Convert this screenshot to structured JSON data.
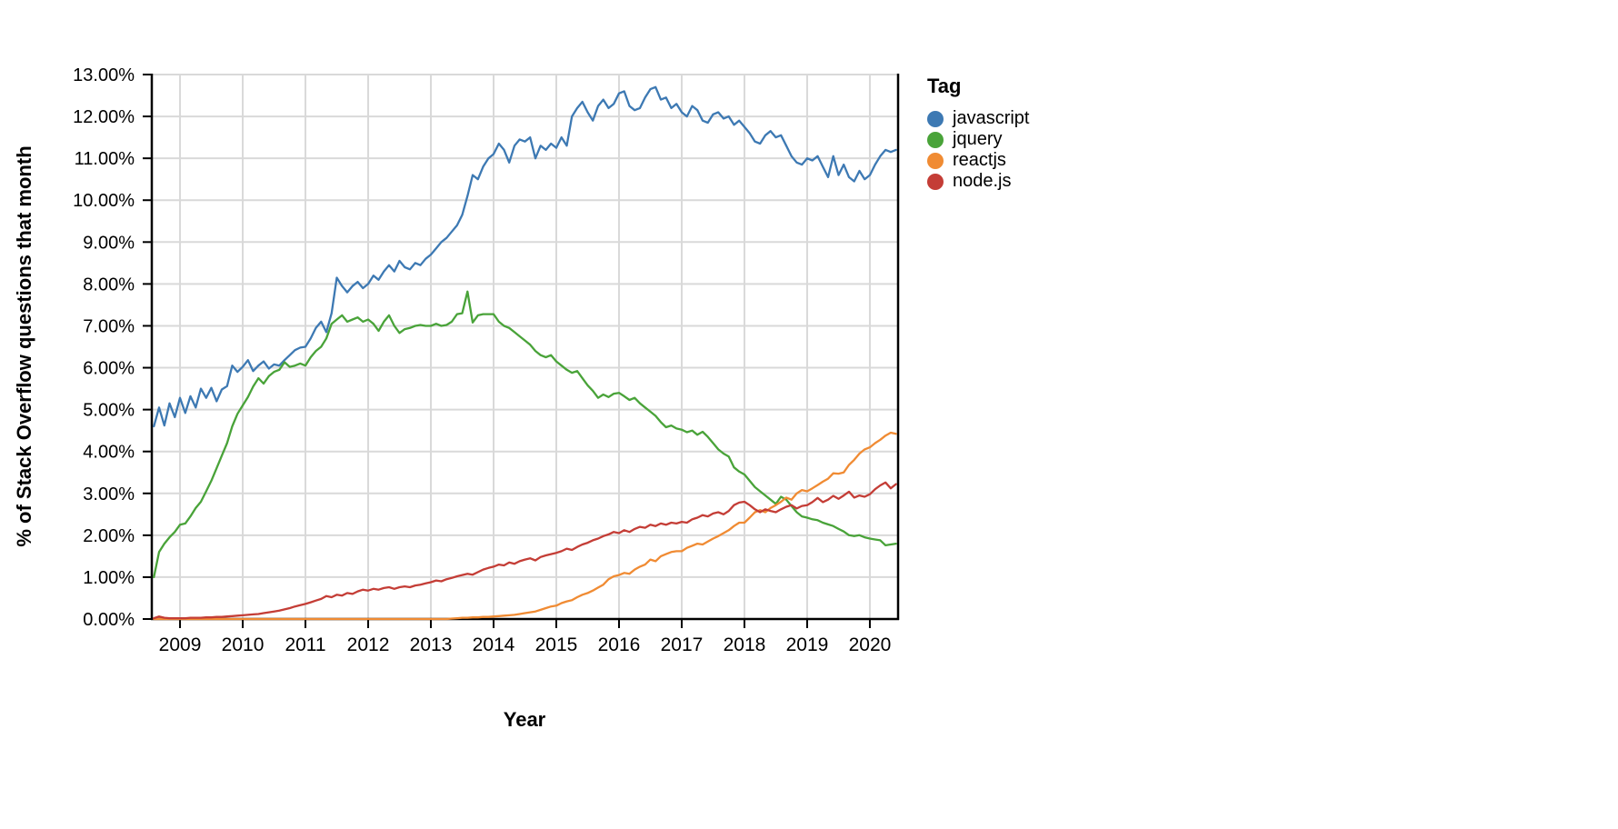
{
  "chart_data": {
    "type": "line",
    "xlabel": "Year",
    "ylabel": "% of Stack Overflow questions that month",
    "legend_title": "Tag",
    "legend_position": "right",
    "grid": true,
    "xlim": [
      2008.55,
      2020.45
    ],
    "ylim": [
      0,
      13
    ],
    "x_start": 2008.5833,
    "x_step": 0.0833333,
    "x_ticks": [
      2009,
      2010,
      2011,
      2012,
      2013,
      2014,
      2015,
      2016,
      2017,
      2018,
      2019,
      2020
    ],
    "x_tick_labels": [
      "2009",
      "2010",
      "2011",
      "2012",
      "2013",
      "2014",
      "2015",
      "2016",
      "2017",
      "2018",
      "2019",
      "2020"
    ],
    "y_ticks": [
      0,
      1,
      2,
      3,
      4,
      5,
      6,
      7,
      8,
      9,
      10,
      11,
      12,
      13
    ],
    "y_tick_labels": [
      "0.00%",
      "1.00%",
      "2.00%",
      "3.00%",
      "4.00%",
      "5.00%",
      "6.00%",
      "7.00%",
      "8.00%",
      "9.00%",
      "10.00%",
      "11.00%",
      "12.00%",
      "13.00%"
    ],
    "colors": {
      "grid": "#d9d9d9",
      "axis": "#000000",
      "text": "#000000",
      "background": "#ffffff"
    },
    "series": [
      {
        "name": "javascript",
        "color": "#3d79b3",
        "values": [
          4.6,
          5.05,
          4.62,
          5.15,
          4.82,
          5.28,
          4.92,
          5.32,
          5.05,
          5.5,
          5.28,
          5.52,
          5.2,
          5.48,
          5.56,
          6.05,
          5.9,
          6.02,
          6.18,
          5.92,
          6.05,
          6.15,
          5.98,
          6.08,
          6.05,
          6.18,
          6.3,
          6.42,
          6.48,
          6.5,
          6.7,
          6.95,
          7.1,
          6.85,
          7.3,
          8.15,
          7.95,
          7.8,
          7.95,
          8.05,
          7.9,
          8.0,
          8.2,
          8.1,
          8.3,
          8.45,
          8.3,
          8.55,
          8.4,
          8.35,
          8.5,
          8.45,
          8.6,
          8.7,
          8.85,
          9.0,
          9.1,
          9.25,
          9.4,
          9.65,
          10.1,
          10.6,
          10.5,
          10.8,
          11.0,
          11.1,
          11.35,
          11.2,
          10.9,
          11.3,
          11.45,
          11.4,
          11.5,
          11.0,
          11.3,
          11.2,
          11.35,
          11.25,
          11.5,
          11.3,
          12.0,
          12.2,
          12.35,
          12.1,
          11.9,
          12.25,
          12.4,
          12.2,
          12.3,
          12.55,
          12.6,
          12.25,
          12.15,
          12.2,
          12.45,
          12.65,
          12.7,
          12.4,
          12.45,
          12.2,
          12.3,
          12.1,
          12.0,
          12.25,
          12.15,
          11.9,
          11.85,
          12.05,
          12.1,
          11.95,
          12.0,
          11.8,
          11.9,
          11.75,
          11.6,
          11.4,
          11.35,
          11.55,
          11.65,
          11.5,
          11.55,
          11.3,
          11.05,
          10.9,
          10.85,
          11.0,
          10.95,
          11.05,
          10.8,
          10.55,
          11.05,
          10.6,
          10.85,
          10.55,
          10.45,
          10.7,
          10.5,
          10.6,
          10.85,
          11.05,
          11.2,
          11.15,
          11.2
        ]
      },
      {
        "name": "jquery",
        "color": "#49a339",
        "values": [
          1.0,
          1.6,
          1.8,
          1.95,
          2.08,
          2.25,
          2.28,
          2.45,
          2.65,
          2.8,
          3.05,
          3.3,
          3.6,
          3.9,
          4.2,
          4.6,
          4.9,
          5.1,
          5.3,
          5.55,
          5.75,
          5.62,
          5.8,
          5.9,
          5.95,
          6.13,
          6.02,
          6.05,
          6.1,
          6.05,
          6.25,
          6.4,
          6.5,
          6.7,
          7.05,
          7.15,
          7.25,
          7.1,
          7.15,
          7.2,
          7.1,
          7.15,
          7.05,
          6.88,
          7.1,
          7.25,
          7.0,
          6.83,
          6.92,
          6.95,
          7.0,
          7.02,
          7.0,
          7.0,
          7.05,
          7.0,
          7.02,
          7.1,
          7.28,
          7.3,
          7.82,
          7.08,
          7.25,
          7.28,
          7.28,
          7.28,
          7.1,
          7.0,
          6.95,
          6.85,
          6.75,
          6.65,
          6.55,
          6.4,
          6.3,
          6.25,
          6.3,
          6.15,
          6.05,
          5.95,
          5.88,
          5.92,
          5.75,
          5.58,
          5.45,
          5.28,
          5.36,
          5.3,
          5.38,
          5.4,
          5.32,
          5.23,
          5.28,
          5.15,
          5.05,
          4.95,
          4.85,
          4.7,
          4.58,
          4.62,
          4.55,
          4.52,
          4.46,
          4.5,
          4.4,
          4.47,
          4.35,
          4.2,
          4.05,
          3.95,
          3.88,
          3.62,
          3.52,
          3.45,
          3.3,
          3.15,
          3.05,
          2.95,
          2.85,
          2.75,
          2.92,
          2.85,
          2.7,
          2.55,
          2.45,
          2.42,
          2.38,
          2.36,
          2.3,
          2.26,
          2.22,
          2.15,
          2.09,
          2.0,
          1.98,
          2.0,
          1.95,
          1.92,
          1.9,
          1.88,
          1.76,
          1.78,
          1.8
        ]
      },
      {
        "name": "reactjs",
        "color": "#f08b33",
        "values": [
          0,
          0,
          0,
          0,
          0,
          0,
          0,
          0,
          0,
          0,
          0,
          0,
          0,
          0,
          0,
          0,
          0,
          0,
          0,
          0,
          0,
          0,
          0,
          0,
          0,
          0,
          0,
          0,
          0,
          0,
          0,
          0,
          0,
          0,
          0,
          0,
          0,
          0,
          0,
          0,
          0,
          0,
          0,
          0,
          0,
          0,
          0,
          0,
          0,
          0,
          0,
          0,
          0,
          0,
          0,
          0,
          0,
          0.01,
          0.02,
          0.03,
          0.03,
          0.04,
          0.04,
          0.05,
          0.05,
          0.06,
          0.07,
          0.08,
          0.09,
          0.1,
          0.12,
          0.14,
          0.16,
          0.18,
          0.22,
          0.26,
          0.3,
          0.32,
          0.38,
          0.42,
          0.45,
          0.52,
          0.58,
          0.62,
          0.68,
          0.75,
          0.82,
          0.95,
          1.02,
          1.05,
          1.1,
          1.08,
          1.18,
          1.25,
          1.3,
          1.42,
          1.38,
          1.5,
          1.55,
          1.6,
          1.62,
          1.62,
          1.7,
          1.75,
          1.8,
          1.78,
          1.85,
          1.92,
          1.98,
          2.05,
          2.12,
          2.22,
          2.3,
          2.3,
          2.42,
          2.55,
          2.6,
          2.55,
          2.65,
          2.72,
          2.8,
          2.9,
          2.85,
          3.0,
          3.08,
          3.05,
          3.12,
          3.2,
          3.28,
          3.35,
          3.48,
          3.47,
          3.5,
          3.68,
          3.8,
          3.95,
          4.05,
          4.1,
          4.2,
          4.28,
          4.38,
          4.45,
          4.42
        ]
      },
      {
        "name": "node.js",
        "color": "#c43d36",
        "values": [
          0.02,
          0.06,
          0.03,
          0.02,
          0.02,
          0.02,
          0.02,
          0.03,
          0.03,
          0.03,
          0.04,
          0.04,
          0.05,
          0.05,
          0.06,
          0.07,
          0.08,
          0.09,
          0.1,
          0.11,
          0.12,
          0.14,
          0.16,
          0.18,
          0.2,
          0.23,
          0.26,
          0.3,
          0.33,
          0.36,
          0.4,
          0.44,
          0.48,
          0.55,
          0.52,
          0.58,
          0.56,
          0.62,
          0.6,
          0.66,
          0.7,
          0.68,
          0.72,
          0.7,
          0.74,
          0.76,
          0.72,
          0.76,
          0.78,
          0.76,
          0.8,
          0.82,
          0.85,
          0.88,
          0.92,
          0.9,
          0.95,
          0.98,
          1.02,
          1.05,
          1.08,
          1.06,
          1.12,
          1.18,
          1.22,
          1.25,
          1.3,
          1.28,
          1.35,
          1.32,
          1.38,
          1.42,
          1.45,
          1.4,
          1.48,
          1.52,
          1.55,
          1.58,
          1.62,
          1.68,
          1.65,
          1.72,
          1.78,
          1.82,
          1.88,
          1.92,
          1.98,
          2.02,
          2.08,
          2.05,
          2.12,
          2.08,
          2.15,
          2.2,
          2.18,
          2.25,
          2.22,
          2.28,
          2.25,
          2.3,
          2.28,
          2.32,
          2.3,
          2.38,
          2.42,
          2.48,
          2.45,
          2.52,
          2.55,
          2.5,
          2.58,
          2.72,
          2.78,
          2.8,
          2.72,
          2.62,
          2.55,
          2.62,
          2.58,
          2.55,
          2.62,
          2.68,
          2.72,
          2.64,
          2.7,
          2.72,
          2.79,
          2.89,
          2.79,
          2.85,
          2.94,
          2.87,
          2.95,
          3.04,
          2.9,
          2.95,
          2.92,
          2.98,
          3.1,
          3.19,
          3.26,
          3.12,
          3.22
        ]
      }
    ]
  }
}
